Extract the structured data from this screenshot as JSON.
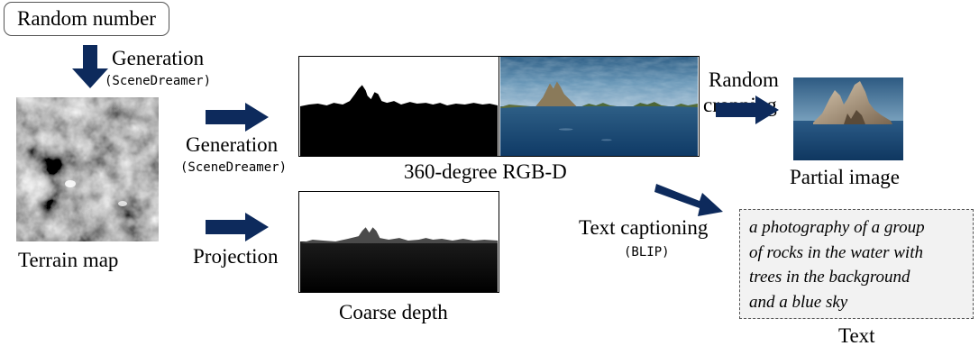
{
  "diagram": {
    "random_number": "Random number",
    "gen_top": {
      "main": "Generation",
      "sub": "(SceneDreamer)"
    },
    "gen_mid": {
      "main": "Generation",
      "sub": "(SceneDreamer)"
    },
    "projection": "Projection",
    "terrain_map": "Terrain map",
    "rgbd_360": "360-degree RGB-D",
    "coarse_depth": "Coarse depth",
    "random_cropping": {
      "line1": "Random",
      "line2": "cropping"
    },
    "partial_image": "Partial image",
    "text_captioning": {
      "main": "Text captioning",
      "sub": "(BLIP)"
    },
    "caption_lines": [
      "a photography of a group",
      "of rocks in the water with",
      "trees in the background",
      "and a blue sky"
    ],
    "text_label": "Text"
  },
  "colors": {
    "arrow": "#0d2a5c",
    "box_border": "#555555",
    "caption_bg": "#f2f2f2"
  }
}
